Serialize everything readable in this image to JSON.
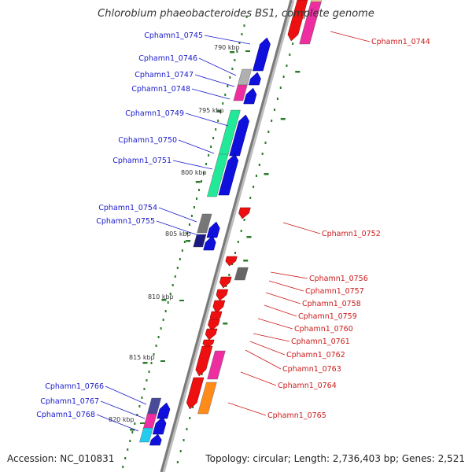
{
  "title": "Chlorobium phaeobacteroides BS1, complete genome",
  "footer": {
    "accession": "Accession: NC_010831",
    "topology": "Topology: circular; Length: 2,736,403 bp; Genes: 2,521"
  },
  "colors": {
    "backbone": "#7a7a7a",
    "forward_label": "#1a1acc",
    "reverse_label": "#cc1a1a",
    "forward_gene": "#1010dd",
    "reverse_gene": "#ee1010",
    "gc_tick": "#2a7a2a"
  },
  "kbp_ticks": [
    "790 kbp",
    "795 kbp",
    "800 kbp",
    "805 kbp",
    "810 kbp",
    "815 kbp",
    "820 kbp"
  ],
  "forward_genes": [
    "Cphamn1_0745",
    "Cphamn1_0746",
    "Cphamn1_0747",
    "Cphamn1_0748",
    "Cphamn1_0749",
    "Cphamn1_0750",
    "Cphamn1_0751",
    "Cphamn1_0754",
    "Cphamn1_0755",
    "Cphamn1_0766",
    "Cphamn1_0767",
    "Cphamn1_0768"
  ],
  "reverse_genes": [
    "Cphamn1_0744",
    "Cphamn1_0752",
    "Cphamn1_0756",
    "Cphamn1_0757",
    "Cphamn1_0758",
    "Cphamn1_0759",
    "Cphamn1_0760",
    "Cphamn1_0761",
    "Cphamn1_0762",
    "Cphamn1_0763",
    "Cphamn1_0764",
    "Cphamn1_0765"
  ]
}
